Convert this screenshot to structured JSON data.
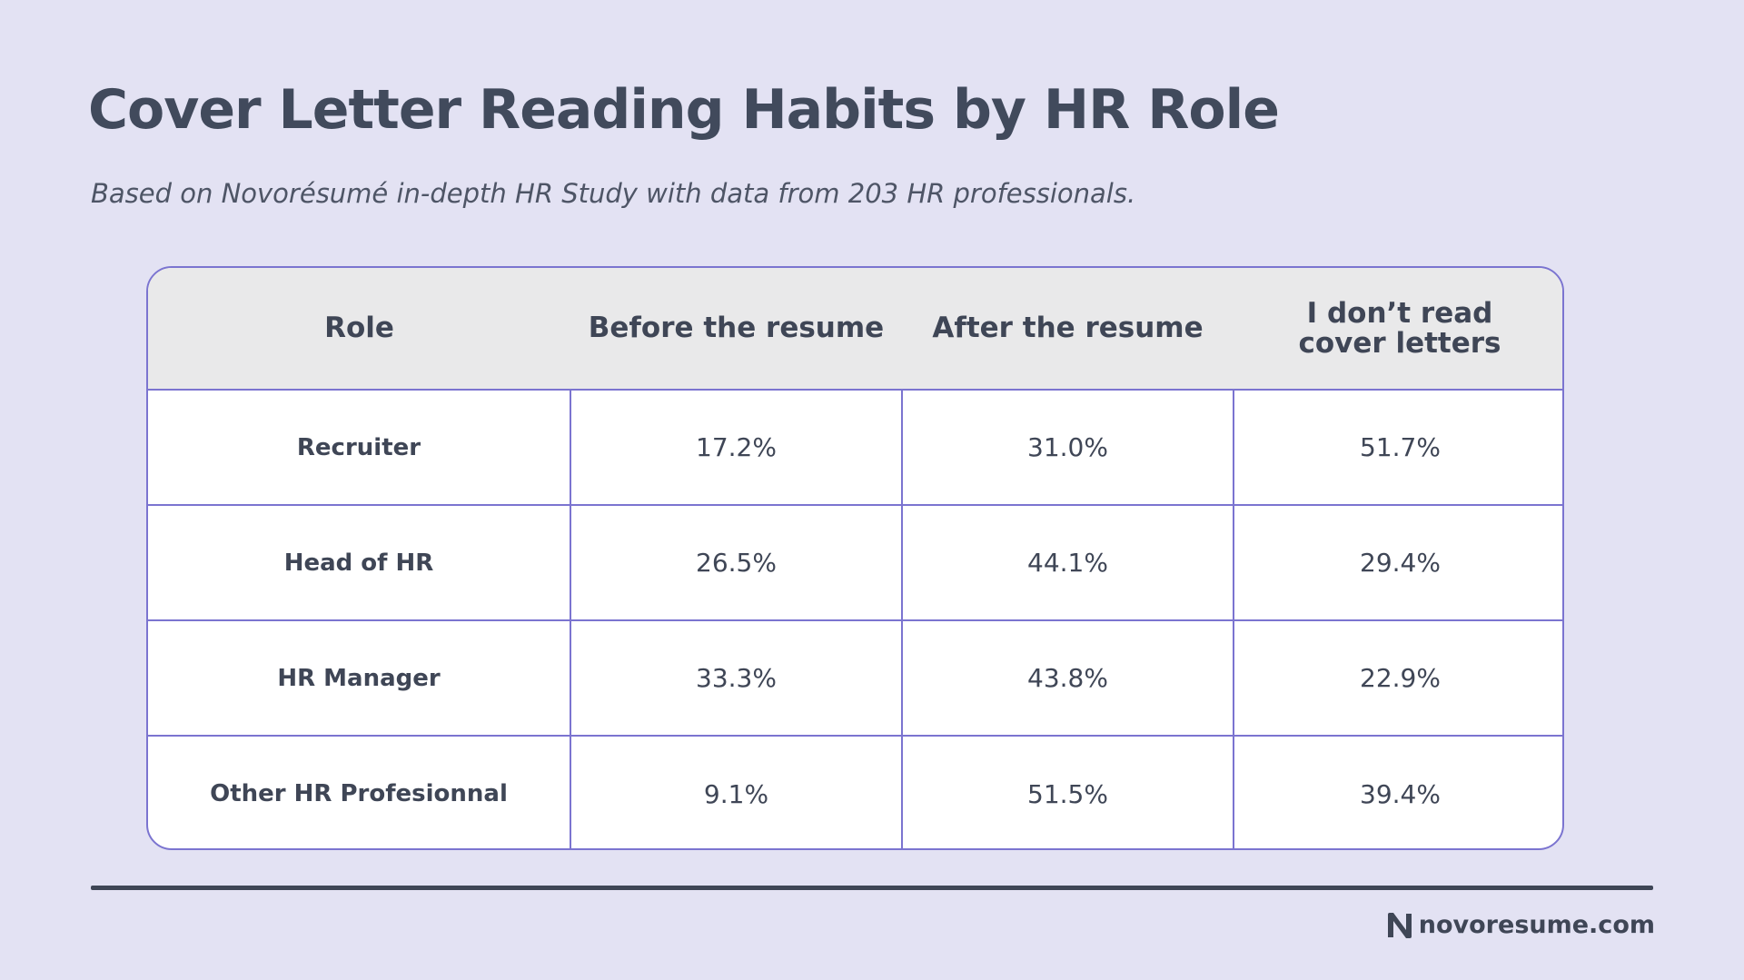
{
  "header": {
    "title": "Cover Letter Reading Habits by HR Role",
    "subtitle": "Based on Novorésumé in-depth HR Study with data from 203 HR professionals."
  },
  "chart_data": {
    "type": "table",
    "columns": [
      "Role",
      "Before the resume",
      "After the resume",
      "I don’t read cover letters"
    ],
    "header_lines": [
      [
        "Role"
      ],
      [
        "Before the resume"
      ],
      [
        "After the resume"
      ],
      [
        "I don’t read",
        "cover letters"
      ]
    ],
    "rows": [
      [
        "Recruiter",
        "17.2%",
        "31.0%",
        "51.7%"
      ],
      [
        "Head of HR",
        "26.5%",
        "44.1%",
        "29.4%"
      ],
      [
        "HR Manager",
        "33.3%",
        "43.8%",
        "22.9%"
      ],
      [
        "Other HR Profesionnal",
        "9.1%",
        "51.5%",
        "39.4%"
      ]
    ]
  },
  "footer": {
    "brand": "novoresume.com",
    "logo_icon": "novoresume-n-logo-icon"
  },
  "colors": {
    "background": "#e3e2f3",
    "border": "#7b74d0",
    "header_fill": "#e9e9ea",
    "text": "#3f4656"
  }
}
